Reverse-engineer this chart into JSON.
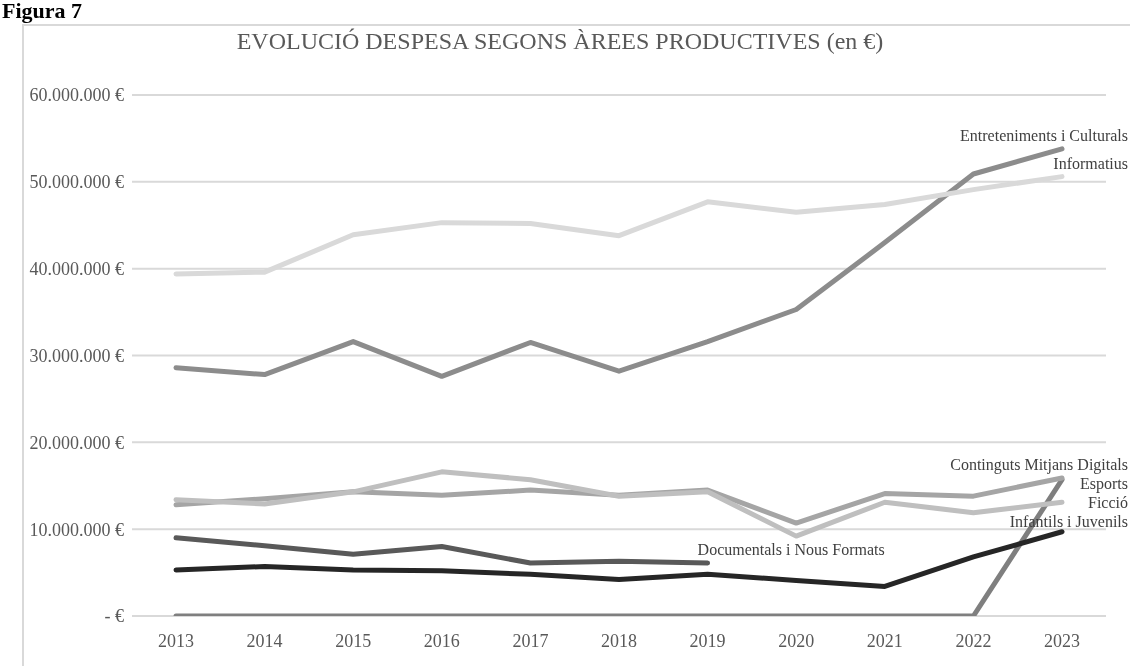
{
  "chart_data": {
    "type": "line",
    "title": "EVOLUCIÓ DESPESA SEGONS ÀREES PRODUCTIVES (en €)",
    "annotations": [
      "Figura 7"
    ],
    "categories": [
      "2013",
      "2014",
      "2015",
      "2016",
      "2017",
      "2018",
      "2019",
      "2020",
      "2021",
      "2022",
      "2023"
    ],
    "series": [
      {
        "name": "Entreteniments i Culturals",
        "color": "#8c8c8c",
        "values": [
          28600000,
          27800000,
          31600000,
          27600000,
          31500000,
          28200000,
          31600000,
          35300000,
          43000000,
          50900000,
          53800000
        ]
      },
      {
        "name": "Informatius",
        "color": "#d9d9d9",
        "values": [
          39400000,
          39600000,
          43900000,
          45300000,
          45200000,
          43800000,
          47700000,
          46500000,
          47400000,
          49100000,
          50600000
        ]
      },
      {
        "name": "Esports",
        "color": "#7f7f7f",
        "values": [
          0,
          0,
          0,
          0,
          0,
          0,
          0,
          0,
          0,
          0,
          15700000
        ]
      },
      {
        "name": "Continguts Mitjans Digitals",
        "color": "#a5a5a5",
        "values": [
          12800000,
          13500000,
          14300000,
          13900000,
          14500000,
          13900000,
          14500000,
          10700000,
          14100000,
          13800000,
          15900000
        ]
      },
      {
        "name": "Ficció",
        "color": "#bfbfbf",
        "values": [
          13400000,
          12900000,
          14300000,
          16600000,
          15700000,
          13800000,
          14300000,
          9200000,
          13100000,
          11900000,
          13100000
        ]
      },
      {
        "name": "Infantils i Juvenils",
        "color": "#262626",
        "values": [
          5300000,
          5700000,
          5300000,
          5200000,
          4800000,
          4200000,
          4800000,
          4100000,
          3400000,
          6800000,
          9700000
        ]
      },
      {
        "name": "Documentals i Nous Formats",
        "color": "#595959",
        "values": [
          9000000,
          8100000,
          7100000,
          8000000,
          6100000,
          6300000,
          6100000,
          null,
          null,
          null,
          null
        ]
      }
    ],
    "ylim": [
      0,
      60000000
    ],
    "yticks": [
      {
        "value": 0,
        "label": "-  €"
      },
      {
        "value": 10000000,
        "label": "10.000.000 €"
      },
      {
        "value": 20000000,
        "label": "20.000.000 €"
      },
      {
        "value": 30000000,
        "label": "30.000.000 €"
      },
      {
        "value": 40000000,
        "label": "40.000.000 €"
      },
      {
        "value": 50000000,
        "label": "50.000.000 €"
      },
      {
        "value": 60000000,
        "label": "60.000.000 €"
      }
    ],
    "grid": "y",
    "legend": false,
    "marker": "none",
    "line_style": "solid"
  }
}
